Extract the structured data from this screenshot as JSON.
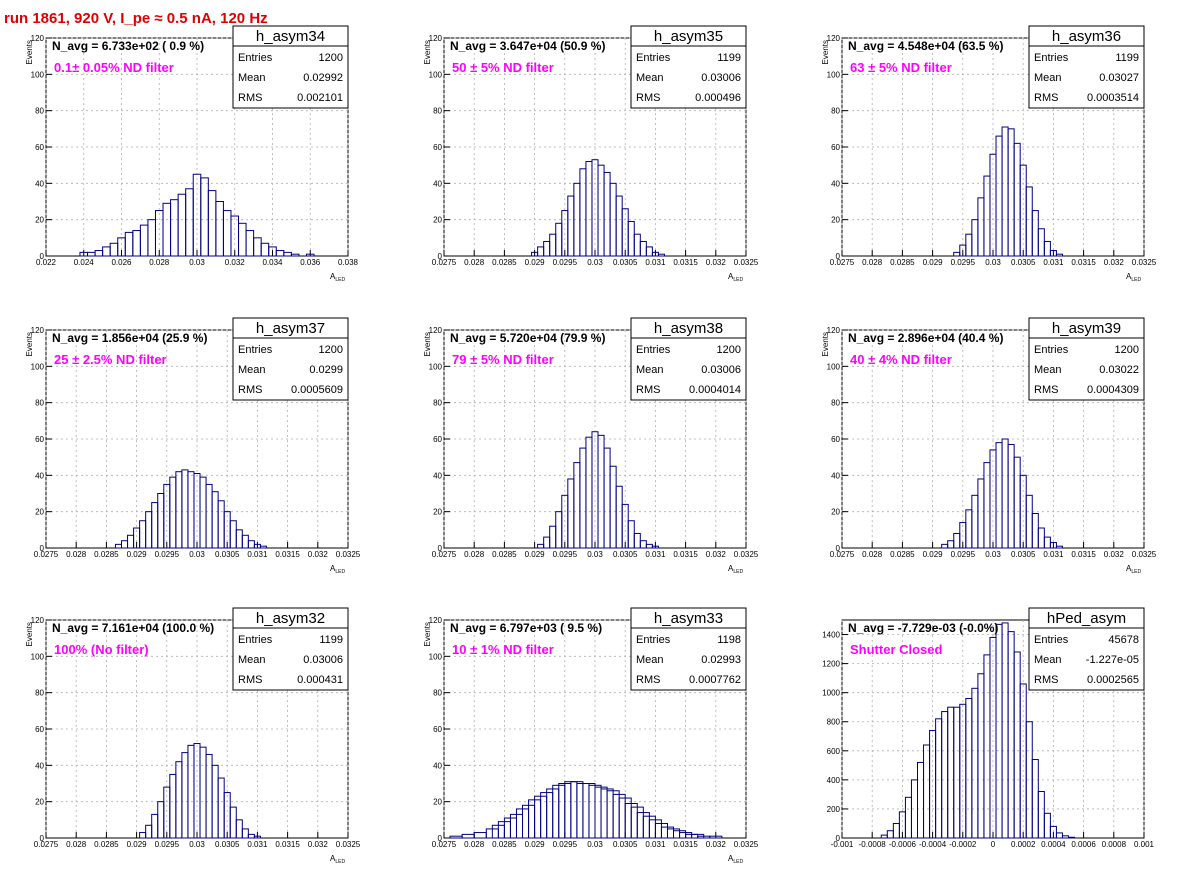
{
  "header": {
    "title": "run 1861,   920 V, I_pe ≈ 0.5 nA, 120 Hz"
  },
  "colors": {
    "histogram": "#000080",
    "annotation": "#ff00ff",
    "title": "#e00000",
    "grid": "#b0b0b0"
  },
  "chart_data": [
    {
      "type": "histogram",
      "name": "h_asym34",
      "navg": "N_avg = 6.733e+02 ( 0.9 %)",
      "filter": "0.1± 0.05% ND filter",
      "stats": {
        "entries": "1200",
        "mean": "0.02992",
        "rms": "0.002101"
      },
      "xlabel": "A_LED",
      "ylabel": "Events",
      "xlim": [
        0.022,
        0.038
      ],
      "ylim": [
        0,
        120
      ],
      "xticks": [
        "0.022",
        "0.024",
        "0.026",
        "0.028",
        "0.03",
        "0.032",
        "0.034",
        "0.036",
        "0.038"
      ],
      "yticks": [
        "0",
        "20",
        "40",
        "60",
        "80",
        "100",
        "120"
      ],
      "grid": true,
      "bins": [
        [
          0.024,
          2
        ],
        [
          0.0244,
          2
        ],
        [
          0.0248,
          3
        ],
        [
          0.0252,
          5
        ],
        [
          0.0256,
          7
        ],
        [
          0.026,
          10
        ],
        [
          0.0264,
          13
        ],
        [
          0.0268,
          14
        ],
        [
          0.0272,
          17
        ],
        [
          0.0276,
          20
        ],
        [
          0.028,
          25
        ],
        [
          0.0284,
          29
        ],
        [
          0.0288,
          31
        ],
        [
          0.0292,
          34
        ],
        [
          0.0296,
          37
        ],
        [
          0.03,
          45
        ],
        [
          0.0304,
          43
        ],
        [
          0.0308,
          36
        ],
        [
          0.0312,
          30
        ],
        [
          0.0316,
          25
        ],
        [
          0.032,
          22
        ],
        [
          0.0324,
          18
        ],
        [
          0.0328,
          14
        ],
        [
          0.0332,
          10
        ],
        [
          0.0336,
          7
        ],
        [
          0.034,
          5
        ],
        [
          0.0344,
          3
        ],
        [
          0.0348,
          2
        ],
        [
          0.0352,
          1
        ],
        [
          0.036,
          1
        ]
      ]
    },
    {
      "type": "histogram",
      "name": "h_asym35",
      "navg": "N_avg = 3.647e+04 (50.9 %)",
      "filter": "50 ± 5% ND filter",
      "stats": {
        "entries": "1199",
        "mean": "0.03006",
        "rms": "0.000496"
      },
      "xlabel": "A_LED",
      "ylabel": "Events",
      "xlim": [
        0.0275,
        0.0325
      ],
      "ylim": [
        0,
        120
      ],
      "xticks": [
        "0.0275",
        "0.028",
        "0.0285",
        "0.029",
        "0.0295",
        "0.03",
        "0.0305",
        "0.031",
        "0.0315",
        "0.032",
        "0.0325"
      ],
      "yticks": [
        "0",
        "20",
        "40",
        "60",
        "80",
        "100",
        "120"
      ],
      "grid": true,
      "bins": [
        [
          0.029,
          2
        ],
        [
          0.0291,
          5
        ],
        [
          0.0292,
          8
        ],
        [
          0.0293,
          12
        ],
        [
          0.0294,
          18
        ],
        [
          0.0295,
          25
        ],
        [
          0.0296,
          33
        ],
        [
          0.0297,
          40
        ],
        [
          0.0298,
          48
        ],
        [
          0.0299,
          52
        ],
        [
          0.03,
          53
        ],
        [
          0.0301,
          50
        ],
        [
          0.0302,
          46
        ],
        [
          0.0303,
          40
        ],
        [
          0.0304,
          33
        ],
        [
          0.0305,
          26
        ],
        [
          0.0306,
          19
        ],
        [
          0.0307,
          12
        ],
        [
          0.0308,
          8
        ],
        [
          0.0309,
          5
        ],
        [
          0.031,
          2
        ],
        [
          0.0311,
          1
        ]
      ]
    },
    {
      "type": "histogram",
      "name": "h_asym36",
      "navg": "N_avg = 4.548e+04 (63.5 %)",
      "filter": "63 ± 5% ND filter",
      "stats": {
        "entries": "1199",
        "mean": "0.03027",
        "rms": "0.0003514"
      },
      "xlabel": "A_LED",
      "ylabel": "Events",
      "xlim": [
        0.0275,
        0.0325
      ],
      "ylim": [
        0,
        120
      ],
      "xticks": [
        "0.0275",
        "0.028",
        "0.0285",
        "0.029",
        "0.0295",
        "0.03",
        "0.0305",
        "0.031",
        "0.0315",
        "0.032",
        "0.0325"
      ],
      "yticks": [
        "0",
        "20",
        "40",
        "60",
        "80",
        "100",
        "120"
      ],
      "grid": true,
      "bins": [
        [
          0.0294,
          2
        ],
        [
          0.0295,
          6
        ],
        [
          0.0296,
          12
        ],
        [
          0.0297,
          20
        ],
        [
          0.0298,
          32
        ],
        [
          0.0299,
          44
        ],
        [
          0.03,
          56
        ],
        [
          0.0301,
          66
        ],
        [
          0.0302,
          71
        ],
        [
          0.0303,
          70
        ],
        [
          0.0304,
          62
        ],
        [
          0.0305,
          50
        ],
        [
          0.0306,
          38
        ],
        [
          0.0307,
          25
        ],
        [
          0.0308,
          15
        ],
        [
          0.0309,
          8
        ],
        [
          0.031,
          3
        ],
        [
          0.0311,
          1
        ]
      ]
    },
    {
      "type": "histogram",
      "name": "h_asym37",
      "navg": "N_avg = 1.856e+04 (25.9 %)",
      "filter": "25 ± 2.5% ND filter",
      "stats": {
        "entries": "1200",
        "mean": "0.0299",
        "rms": "0.0005609"
      },
      "xlabel": "A_LED",
      "ylabel": "Events",
      "xlim": [
        0.0275,
        0.0325
      ],
      "ylim": [
        0,
        120
      ],
      "xticks": [
        "0.0275",
        "0.028",
        "0.0285",
        "0.029",
        "0.0295",
        "0.03",
        "0.0305",
        "0.031",
        "0.0315",
        "0.032",
        "0.0325"
      ],
      "yticks": [
        "0",
        "20",
        "40",
        "60",
        "80",
        "100",
        "120"
      ],
      "grid": true,
      "bins": [
        [
          0.0287,
          2
        ],
        [
          0.0288,
          4
        ],
        [
          0.0289,
          7
        ],
        [
          0.029,
          11
        ],
        [
          0.0291,
          15
        ],
        [
          0.0292,
          20
        ],
        [
          0.0293,
          25
        ],
        [
          0.0294,
          30
        ],
        [
          0.0295,
          35
        ],
        [
          0.0296,
          39
        ],
        [
          0.0297,
          42
        ],
        [
          0.0298,
          43
        ],
        [
          0.0299,
          42
        ],
        [
          0.03,
          41
        ],
        [
          0.0301,
          39
        ],
        [
          0.0302,
          35
        ],
        [
          0.0303,
          31
        ],
        [
          0.0304,
          26
        ],
        [
          0.0305,
          20
        ],
        [
          0.0306,
          15
        ],
        [
          0.0307,
          10
        ],
        [
          0.0308,
          7
        ],
        [
          0.0309,
          4
        ],
        [
          0.031,
          2
        ],
        [
          0.0311,
          1
        ]
      ]
    },
    {
      "type": "histogram",
      "name": "h_asym38",
      "navg": "N_avg = 5.720e+04 (79.9 %)",
      "filter": "79 ± 5% ND filter",
      "stats": {
        "entries": "1200",
        "mean": "0.03006",
        "rms": "0.0004014"
      },
      "xlabel": "A_LED",
      "ylabel": "Events",
      "xlim": [
        0.0275,
        0.0325
      ],
      "ylim": [
        0,
        120
      ],
      "xticks": [
        "0.0275",
        "0.028",
        "0.0285",
        "0.029",
        "0.0295",
        "0.03",
        "0.0305",
        "0.031",
        "0.0315",
        "0.032",
        "0.0325"
      ],
      "yticks": [
        "0",
        "20",
        "40",
        "60",
        "80",
        "100",
        "120"
      ],
      "grid": true,
      "bins": [
        [
          0.0291,
          2
        ],
        [
          0.0292,
          6
        ],
        [
          0.0293,
          12
        ],
        [
          0.0294,
          20
        ],
        [
          0.0295,
          29
        ],
        [
          0.0296,
          38
        ],
        [
          0.0297,
          47
        ],
        [
          0.0298,
          55
        ],
        [
          0.0299,
          61
        ],
        [
          0.03,
          64
        ],
        [
          0.0301,
          62
        ],
        [
          0.0302,
          55
        ],
        [
          0.0303,
          45
        ],
        [
          0.0304,
          34
        ],
        [
          0.0305,
          24
        ],
        [
          0.0306,
          15
        ],
        [
          0.0307,
          8
        ],
        [
          0.0308,
          4
        ],
        [
          0.0309,
          2
        ],
        [
          0.031,
          1
        ]
      ]
    },
    {
      "type": "histogram",
      "name": "h_asym39",
      "navg": "N_avg = 2.896e+04 (40.4 %)",
      "filter": "40 ± 4% ND filter",
      "stats": {
        "entries": "1200",
        "mean": "0.03022",
        "rms": "0.0004309"
      },
      "xlabel": "A_LED",
      "ylabel": "Events",
      "xlim": [
        0.0275,
        0.0325
      ],
      "ylim": [
        0,
        120
      ],
      "xticks": [
        "0.0275",
        "0.028",
        "0.0285",
        "0.029",
        "0.0295",
        "0.03",
        "0.0305",
        "0.031",
        "0.0315",
        "0.032",
        "0.0325"
      ],
      "yticks": [
        "0",
        "20",
        "40",
        "60",
        "80",
        "100",
        "120"
      ],
      "grid": true,
      "bins": [
        [
          0.0292,
          2
        ],
        [
          0.0293,
          4
        ],
        [
          0.0294,
          8
        ],
        [
          0.0295,
          14
        ],
        [
          0.0296,
          21
        ],
        [
          0.0297,
          29
        ],
        [
          0.0298,
          38
        ],
        [
          0.0299,
          47
        ],
        [
          0.03,
          54
        ],
        [
          0.0301,
          58
        ],
        [
          0.0302,
          60
        ],
        [
          0.0303,
          57
        ],
        [
          0.0304,
          50
        ],
        [
          0.0305,
          40
        ],
        [
          0.0306,
          29
        ],
        [
          0.0307,
          19
        ],
        [
          0.0308,
          11
        ],
        [
          0.0309,
          6
        ],
        [
          0.031,
          3
        ],
        [
          0.0311,
          1
        ]
      ]
    },
    {
      "type": "histogram",
      "name": "h_asym32",
      "navg": "N_avg = 7.161e+04 (100.0 %)",
      "filter": "100% (No filter)",
      "stats": {
        "entries": "1199",
        "mean": "0.03006",
        "rms": "0.000431"
      },
      "xlabel": "A_LED",
      "ylabel": "Events",
      "xlim": [
        0.0275,
        0.0325
      ],
      "ylim": [
        0,
        120
      ],
      "xticks": [
        "0.0275",
        "0.028",
        "0.0285",
        "0.029",
        "0.0295",
        "0.03",
        "0.0305",
        "0.031",
        "0.0315",
        "0.032",
        "0.0325"
      ],
      "yticks": [
        "0",
        "20",
        "40",
        "60",
        "80",
        "100",
        "120"
      ],
      "grid": true,
      "bins": [
        [
          0.0291,
          3
        ],
        [
          0.0292,
          7
        ],
        [
          0.0293,
          13
        ],
        [
          0.0294,
          20
        ],
        [
          0.0295,
          28
        ],
        [
          0.0296,
          35
        ],
        [
          0.0297,
          42
        ],
        [
          0.0298,
          47
        ],
        [
          0.0299,
          51
        ],
        [
          0.03,
          52
        ],
        [
          0.0301,
          50
        ],
        [
          0.0302,
          46
        ],
        [
          0.0303,
          40
        ],
        [
          0.0304,
          33
        ],
        [
          0.0305,
          25
        ],
        [
          0.0306,
          17
        ],
        [
          0.0307,
          10
        ],
        [
          0.0308,
          5
        ],
        [
          0.0309,
          2
        ],
        [
          0.031,
          1
        ]
      ]
    },
    {
      "type": "histogram",
      "name": "h_asym33",
      "navg": "N_avg = 6.797e+03 ( 9.5 %)",
      "filter": "10 ± 1% ND filter",
      "stats": {
        "entries": "1198",
        "mean": "0.02993",
        "rms": "0.0007762"
      },
      "xlabel": "A_LED",
      "ylabel": "Events",
      "xlim": [
        0.0275,
        0.0325
      ],
      "ylim": [
        0,
        120
      ],
      "xticks": [
        "0.0275",
        "0.028",
        "0.0285",
        "0.029",
        "0.0295",
        "0.03",
        "0.0305",
        "0.031",
        "0.0315",
        "0.032",
        "0.0325"
      ],
      "yticks": [
        "0",
        "20",
        "40",
        "60",
        "80",
        "100",
        "120"
      ],
      "grid": true,
      "bins": [
        [
          0.0277,
          1
        ],
        [
          0.0279,
          2
        ],
        [
          0.0281,
          3
        ],
        [
          0.0283,
          5
        ],
        [
          0.0284,
          7
        ],
        [
          0.0285,
          9
        ],
        [
          0.0286,
          11
        ],
        [
          0.0287,
          13
        ],
        [
          0.0288,
          16
        ],
        [
          0.0289,
          18
        ],
        [
          0.029,
          21
        ],
        [
          0.0291,
          23
        ],
        [
          0.0292,
          25
        ],
        [
          0.0293,
          27
        ],
        [
          0.0294,
          29
        ],
        [
          0.0295,
          30
        ],
        [
          0.0296,
          31
        ],
        [
          0.0297,
          31
        ],
        [
          0.0298,
          30
        ],
        [
          0.0299,
          30
        ],
        [
          0.03,
          29
        ],
        [
          0.0301,
          28
        ],
        [
          0.0302,
          27
        ],
        [
          0.0303,
          26
        ],
        [
          0.0304,
          24
        ],
        [
          0.0305,
          22
        ],
        [
          0.0306,
          19
        ],
        [
          0.0307,
          17
        ],
        [
          0.0308,
          14
        ],
        [
          0.0309,
          12
        ],
        [
          0.031,
          10
        ],
        [
          0.0311,
          8
        ],
        [
          0.0312,
          6
        ],
        [
          0.0313,
          5
        ],
        [
          0.0314,
          4
        ],
        [
          0.0315,
          3
        ],
        [
          0.0316,
          2
        ],
        [
          0.0317,
          2
        ],
        [
          0.0318,
          1
        ],
        [
          0.032,
          1
        ]
      ]
    },
    {
      "type": "histogram",
      "name": "hPed_asym",
      "navg": "N_avg = -7.729e-03 (-0.0%)",
      "filter": "Shutter Closed",
      "stats": {
        "entries": "45678",
        "mean": "-1.227e-05",
        "rms": "0.0002565"
      },
      "xlabel": "",
      "ylabel": "",
      "xlim": [
        -0.001,
        0.001
      ],
      "ylim": [
        0,
        1500
      ],
      "xticks": [
        "-0.001",
        "-0.0008",
        "-0.0006",
        "-0.0004",
        "-0.0002",
        "0",
        "0.0002",
        "0.0004",
        "0.0006",
        "0.0008",
        "0.001"
      ],
      "yticks": [
        "0",
        "200",
        "400",
        "600",
        "800",
        "1000",
        "1200",
        "1400"
      ],
      "grid": true,
      "bins": [
        [
          -0.00072,
          20
        ],
        [
          -0.00068,
          50
        ],
        [
          -0.00064,
          100
        ],
        [
          -0.0006,
          180
        ],
        [
          -0.00056,
          280
        ],
        [
          -0.00052,
          400
        ],
        [
          -0.00048,
          520
        ],
        [
          -0.00044,
          640
        ],
        [
          -0.0004,
          740
        ],
        [
          -0.00036,
          820
        ],
        [
          -0.00032,
          870
        ],
        [
          -0.00028,
          900
        ],
        [
          -0.00024,
          900
        ],
        [
          -0.0002,
          920
        ],
        [
          -0.00016,
          960
        ],
        [
          -0.00012,
          1030
        ],
        [
          -8e-05,
          1130
        ],
        [
          -4e-05,
          1260
        ],
        [
          0.0,
          1380
        ],
        [
          4e-05,
          1470
        ],
        [
          8e-05,
          1480
        ],
        [
          0.00012,
          1420
        ],
        [
          0.00016,
          1280
        ],
        [
          0.0002,
          1060
        ],
        [
          0.00024,
          800
        ],
        [
          0.00028,
          540
        ],
        [
          0.00032,
          320
        ],
        [
          0.00036,
          170
        ],
        [
          0.0004,
          80
        ],
        [
          0.00044,
          35
        ],
        [
          0.00048,
          15
        ],
        [
          0.00052,
          5
        ]
      ]
    }
  ]
}
